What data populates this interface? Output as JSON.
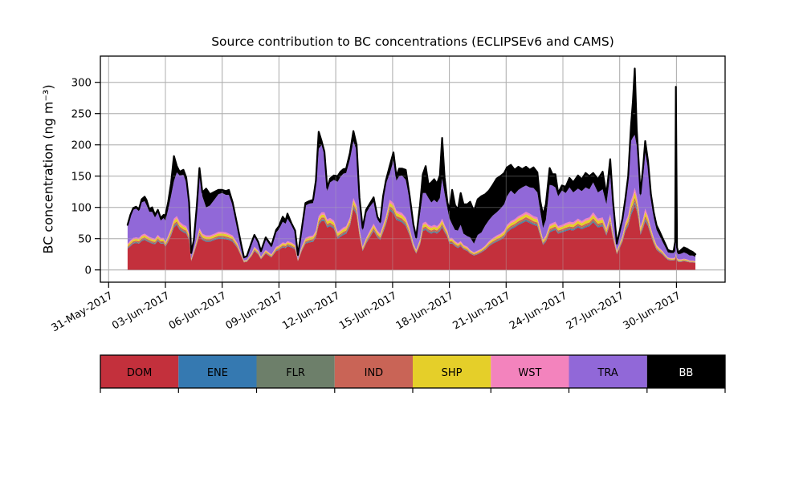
{
  "title": "Source contribution to BC concentrations (ECLIPSEv6 and CAMS)",
  "axes": {
    "ylabel": "BC concentration (ng m⁻³)",
    "yticks": [
      0,
      50,
      100,
      150,
      200,
      250,
      300
    ],
    "xtick_days": [
      0,
      3,
      6,
      9,
      12,
      15,
      18,
      21,
      24,
      27,
      30
    ],
    "xtick_labels": [
      "31-May-2017",
      "03-Jun-2017",
      "06-Jun-2017",
      "09-Jun-2017",
      "12-Jun-2017",
      "15-Jun-2017",
      "18-Jun-2017",
      "21-Jun-2017",
      "24-Jun-2017",
      "27-Jun-2017",
      "30-Jun-2017"
    ],
    "grid_color": "#b0b0b0",
    "frame_color": "#000000"
  },
  "legend": {
    "entries": [
      {
        "label": "DOM",
        "color": "#c3303c",
        "text_color": "#000000"
      },
      {
        "label": "ENE",
        "color": "#3579b1",
        "text_color": "#000000"
      },
      {
        "label": "FLR",
        "color": "#6d7f6a",
        "text_color": "#000000"
      },
      {
        "label": "IND",
        "color": "#c96456",
        "text_color": "#000000"
      },
      {
        "label": "SHP",
        "color": "#e5cf29",
        "text_color": "#000000"
      },
      {
        "label": "WST",
        "color": "#f383bd",
        "text_color": "#000000"
      },
      {
        "label": "TRA",
        "color": "#9168d8",
        "text_color": "#000000"
      },
      {
        "label": "BB",
        "color": "#000000",
        "text_color": "#ffffff"
      }
    ]
  },
  "chart_data": {
    "type": "area",
    "stacked": true,
    "title": "Source contribution to BC concentrations (ECLIPSEv6 and CAMS)",
    "ylabel": "BC concentration (ng m⁻³)",
    "x_unit": "days since 31-May-2017",
    "x_range_days": [
      1.0,
      31.0
    ],
    "ylim": [
      -19,
      342
    ],
    "total_line_color": "#000000",
    "x_days": [
      1.0,
      1.15,
      1.3,
      1.45,
      1.6,
      1.75,
      1.9,
      2.0,
      2.15,
      2.3,
      2.45,
      2.6,
      2.75,
      2.9,
      3.0,
      3.15,
      3.3,
      3.45,
      3.6,
      3.75,
      3.95,
      4.1,
      4.25,
      4.36,
      4.5,
      4.65,
      4.8,
      4.95,
      5.15,
      5.35,
      5.6,
      5.8,
      6.0,
      6.2,
      6.35,
      6.55,
      6.8,
      7.0,
      7.15,
      7.3,
      7.55,
      7.7,
      7.9,
      8.05,
      8.3,
      8.6,
      8.85,
      9.0,
      9.2,
      9.35,
      9.45,
      9.65,
      9.85,
      10.0,
      10.2,
      10.4,
      10.6,
      10.8,
      10.95,
      11.1,
      11.25,
      11.4,
      11.55,
      11.7,
      11.9,
      12.1,
      12.25,
      12.4,
      12.55,
      12.75,
      12.93,
      13.1,
      13.25,
      13.42,
      13.6,
      13.8,
      14.0,
      14.2,
      14.35,
      14.5,
      14.65,
      14.85,
      15.05,
      15.2,
      15.35,
      15.5,
      15.7,
      15.9,
      16.1,
      16.25,
      16.45,
      16.6,
      16.75,
      16.9,
      17.05,
      17.2,
      17.35,
      17.5,
      17.62,
      17.75,
      17.9,
      18.0,
      18.15,
      18.3,
      18.45,
      18.6,
      18.75,
      18.95,
      19.1,
      19.3,
      19.5,
      19.7,
      19.9,
      20.1,
      20.3,
      20.5,
      20.7,
      20.9,
      21.05,
      21.25,
      21.45,
      21.65,
      21.85,
      22.05,
      22.25,
      22.45,
      22.65,
      22.8,
      22.95,
      23.1,
      23.3,
      23.45,
      23.6,
      23.75,
      23.95,
      24.15,
      24.35,
      24.55,
      24.8,
      25.0,
      25.2,
      25.4,
      25.6,
      25.85,
      26.1,
      26.3,
      26.5,
      26.65,
      26.85,
      27.0,
      27.15,
      27.3,
      27.45,
      27.6,
      27.7,
      27.8,
      27.9,
      28.0,
      28.1,
      28.25,
      28.35,
      28.5,
      28.65,
      28.8,
      28.95,
      29.1,
      29.25,
      29.4,
      29.55,
      29.7,
      29.85,
      29.93,
      29.97,
      30.03,
      30.1,
      30.25,
      30.4,
      30.55,
      30.7,
      30.85,
      31.0
    ],
    "series": [
      {
        "name": "DOM",
        "color": "#c3303c",
        "values": [
          34,
          38,
          42,
          43,
          42,
          46,
          48,
          46,
          44,
          42,
          41,
          46,
          42,
          42,
          37,
          45,
          55,
          68,
          72,
          64,
          60,
          58,
          48,
          14,
          26,
          40,
          55,
          48,
          45,
          45,
          48,
          50,
          50,
          49,
          48,
          45,
          35,
          22,
          12,
          13,
          22,
          30,
          25,
          17,
          26,
          20,
          30,
          32,
          36,
          35,
          38,
          36,
          33,
          14,
          30,
          42,
          44,
          45,
          52,
          72,
          78,
          78,
          68,
          70,
          66,
          50,
          53,
          56,
          58,
          70,
          98,
          88,
          55,
          30,
          42,
          52,
          62,
          52,
          48,
          60,
          72,
          95,
          90,
          80,
          78,
          76,
          70,
          55,
          35,
          26,
          40,
          62,
          64,
          60,
          58,
          60,
          58,
          62,
          68,
          60,
          52,
          42,
          42,
          38,
          35,
          38,
          33,
          30,
          26,
          23,
          25,
          28,
          32,
          38,
          42,
          45,
          48,
          52,
          60,
          65,
          68,
          72,
          75,
          78,
          75,
          72,
          70,
          55,
          40,
          45,
          60,
          62,
          64,
          58,
          60,
          62,
          64,
          63,
          68,
          65,
          68,
          70,
          76,
          68,
          70,
          55,
          74,
          50,
          25,
          35,
          45,
          62,
          70,
          88,
          95,
          105,
          95,
          80,
          56,
          68,
          78,
          70,
          55,
          42,
          32,
          28,
          25,
          20,
          16,
          15,
          15,
          16,
          22,
          15,
          13,
          13,
          14,
          13,
          12,
          12,
          11
        ]
      },
      {
        "name": "OTHER (ENE+FLR+IND+SHP+WST)",
        "values": [
          8,
          9,
          9,
          9,
          9,
          10,
          10,
          10,
          9,
          9,
          9,
          10,
          9,
          9,
          8,
          10,
          12,
          14,
          14,
          13,
          12,
          12,
          10,
          4,
          6,
          9,
          12,
          10,
          10,
          10,
          10,
          11,
          11,
          11,
          10,
          10,
          8,
          5,
          3,
          3,
          5,
          7,
          6,
          4,
          6,
          5,
          7,
          7,
          8,
          8,
          8,
          8,
          7,
          3,
          7,
          9,
          10,
          10,
          11,
          14,
          14,
          14,
          13,
          13,
          13,
          11,
          11,
          12,
          12,
          14,
          17,
          15,
          11,
          7,
          9,
          11,
          12,
          11,
          10,
          12,
          14,
          17,
          17,
          15,
          15,
          15,
          14,
          12,
          8,
          6,
          9,
          13,
          13,
          12,
          12,
          12,
          12,
          13,
          14,
          12,
          11,
          9,
          9,
          8,
          8,
          8,
          7,
          7,
          6,
          5,
          6,
          6,
          7,
          8,
          9,
          10,
          10,
          11,
          12,
          13,
          13,
          14,
          14,
          15,
          15,
          14,
          14,
          12,
          9,
          10,
          13,
          13,
          13,
          12,
          12,
          13,
          13,
          13,
          14,
          13,
          14,
          14,
          16,
          14,
          14,
          12,
          15,
          11,
          6,
          8,
          10,
          14,
          18,
          23,
          25,
          26,
          24,
          20,
          13,
          16,
          20,
          16,
          12,
          10,
          8,
          7,
          6,
          5,
          4,
          4,
          4,
          4,
          5,
          4,
          4,
          4,
          4,
          4,
          3,
          3,
          3
        ],
        "components": [
          {
            "name": "ENE",
            "color": "#3579b1",
            "fraction": 0.1
          },
          {
            "name": "FLR",
            "color": "#6d7f6a",
            "fraction": 0.1
          },
          {
            "name": "IND",
            "color": "#c96456",
            "fraction": 0.22
          },
          {
            "name": "SHP",
            "color": "#e5cf29",
            "fraction": 0.33
          },
          {
            "name": "WST",
            "color": "#f383bd",
            "fraction": 0.25
          }
        ]
      },
      {
        "name": "TRA",
        "color": "#9168d8",
        "values": [
          28,
          38,
          45,
          46,
          43,
          52,
          52,
          48,
          40,
          42,
          34,
          36,
          28,
          32,
          34,
          42,
          52,
          60,
          70,
          74,
          80,
          70,
          45,
          7,
          14,
          45,
          88,
          60,
          45,
          48,
          55,
          60,
          62,
          60,
          62,
          48,
          25,
          12,
          4,
          5,
          14,
          16,
          12,
          7,
          17,
          11,
          23,
          26,
          33,
          31,
          36,
          28,
          20,
          6,
          25,
          52,
          52,
          52,
          72,
          108,
          108,
          92,
          45,
          57,
          65,
          80,
          85,
          86,
          85,
          93,
          91,
          88,
          45,
          26,
          40,
          38,
          35,
          18,
          16,
          40,
          52,
          42,
          68,
          48,
          57,
          60,
          60,
          45,
          25,
          17,
          40,
          48,
          46,
          43,
          38,
          40,
          38,
          40,
          64,
          50,
          35,
          32,
          22,
          18,
          20,
          26,
          18,
          17,
          20,
          14,
          25,
          26,
          32,
          34,
          36,
          37,
          40,
          42,
          46,
          49,
          40,
          42,
          43,
          42,
          42,
          45,
          40,
          28,
          18,
          25,
          63,
          60,
          55,
          48,
          55,
          48,
          55,
          48,
          48,
          48,
          50,
          45,
          48,
          42,
          45,
          38,
          64,
          35,
          8,
          15,
          22,
          30,
          52,
          95,
          92,
          85,
          80,
          62,
          48,
          70,
          90,
          76,
          46,
          32,
          24,
          20,
          15,
          12,
          8,
          8,
          8,
          10,
          18,
          9,
          8,
          9,
          10,
          9,
          8,
          8,
          7
        ]
      },
      {
        "name": "BB",
        "color": "#000000",
        "values": [
          2,
          3,
          3,
          3,
          3,
          5,
          7,
          8,
          4,
          7,
          4,
          4,
          4,
          5,
          8,
          12,
          20,
          40,
          10,
          6,
          8,
          8,
          5,
          2,
          2,
          5,
          8,
          6,
          30,
          18,
          12,
          7,
          5,
          6,
          8,
          5,
          3,
          2,
          1,
          1,
          3,
          3,
          2,
          2,
          3,
          3,
          4,
          5,
          8,
          5,
          8,
          3,
          3,
          1,
          3,
          4,
          4,
          5,
          8,
          27,
          6,
          5,
          5,
          6,
          7,
          9,
          8,
          7,
          7,
          10,
          16,
          9,
          5,
          4,
          5,
          5,
          7,
          4,
          3,
          6,
          5,
          12,
          13,
          7,
          12,
          11,
          16,
          7,
          5,
          3,
          14,
          30,
          43,
          21,
          32,
          33,
          30,
          36,
          65,
          25,
          10,
          13,
          55,
          40,
          33,
          51,
          47,
          51,
          57,
          52,
          57,
          58,
          50,
          47,
          49,
          54,
          52,
          50,
          46,
          41,
          39,
          37,
          29,
          30,
          28,
          33,
          32,
          16,
          21,
          25,
          27,
          18,
          21,
          5,
          8,
          10,
          15,
          16,
          21,
          19,
          23,
          21,
          15,
          21,
          28,
          15,
          24,
          14,
          3,
          4,
          5,
          8,
          10,
          24,
          58,
          106,
          26,
          12,
          5,
          15,
          18,
          12,
          8,
          8,
          7,
          7,
          6,
          5,
          4,
          3,
          3,
          15,
          248,
          8,
          3,
          6,
          8,
          8,
          8,
          6,
          4
        ]
      }
    ]
  }
}
